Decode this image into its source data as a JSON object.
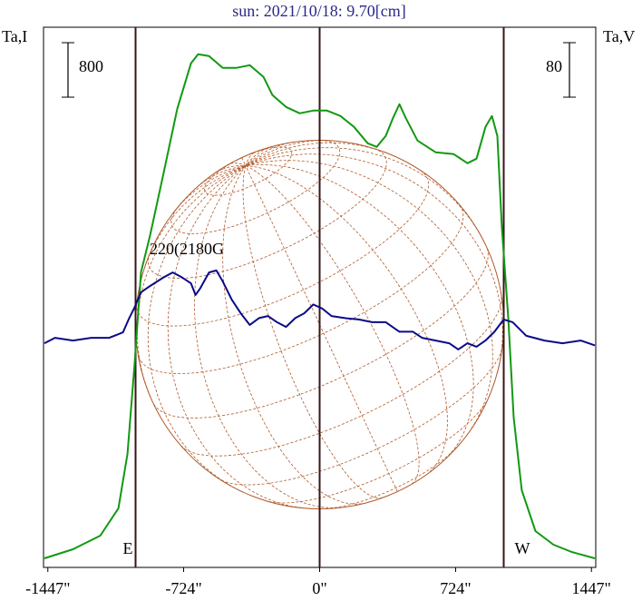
{
  "chart_data": {
    "type": "line",
    "title": "sun: 2021/10/18: 9.70[cm]",
    "y_label": "Ta,I",
    "y2_label": "Ta,V",
    "annotation": "220(2180G",
    "xlim": [
      -1470,
      1470
    ],
    "xticks": [
      {
        "value": -1447,
        "label": "-1447\""
      },
      {
        "value": -724,
        "label": "-724\""
      },
      {
        "value": 0,
        "label": "0\""
      },
      {
        "value": 724,
        "label": "724\""
      },
      {
        "value": 1447,
        "label": "1447\""
      }
    ],
    "ylim": [
      0,
      7930
    ],
    "y2lim": [
      -333,
      460
    ],
    "scale_bars": [
      {
        "value": 800,
        "axis": "y"
      },
      {
        "value": 80,
        "axis": "y2"
      }
    ],
    "markers": [
      {
        "label": "E",
        "x": -980
      },
      {
        "label": "W",
        "x": 980
      }
    ],
    "series": [
      {
        "color": "#119911",
        "axis": "y",
        "x": [
          -1465,
          -1313,
          -1168,
          -1071,
          -1023,
          -985,
          -951,
          -903,
          -830,
          -758,
          -685,
          -647,
          -589,
          -516,
          -444,
          -372,
          -299,
          -251,
          -179,
          -106,
          -34,
          39,
          111,
          183,
          256,
          304,
          352,
          391,
          425,
          458,
          521,
          618,
          714,
          787,
          835,
          883,
          917,
          946,
          970,
          1004,
          1033,
          1076,
          1149,
          1245,
          1342,
          1465
        ],
        "values": [
          133,
          267,
          467,
          867,
          1667,
          3000,
          4333,
          4867,
          5800,
          6733,
          7400,
          7533,
          7507,
          7333,
          7333,
          7373,
          7200,
          6933,
          6760,
          6667,
          6707,
          6707,
          6627,
          6467,
          6227,
          6173,
          6333,
          6600,
          6800,
          6600,
          6267,
          6093,
          6067,
          5933,
          6000,
          6467,
          6627,
          6333,
          5000,
          3667,
          2200,
          1133,
          533,
          333,
          227,
          133
        ]
      },
      {
        "color": "#0a0a88",
        "axis": "y2",
        "x": [
          -1465,
          -1409,
          -1313,
          -1216,
          -1120,
          -1047,
          -1014,
          -985,
          -951,
          -903,
          -830,
          -782,
          -734,
          -685,
          -661,
          -637,
          -589,
          -550,
          -516,
          -468,
          -420,
          -372,
          -323,
          -275,
          -227,
          -179,
          -130,
          -82,
          -34,
          14,
          63,
          135,
          208,
          280,
          352,
          425,
          497,
          545,
          618,
          690,
          738,
          787,
          835,
          883,
          931,
          980,
          1028,
          1100,
          1197,
          1293,
          1390,
          1465
        ],
        "values": [
          -4,
          4,
          0,
          4,
          4,
          12,
          33,
          49,
          71,
          80,
          93,
          100,
          93,
          84,
          67,
          76,
          100,
          103,
          87,
          60,
          40,
          23,
          33,
          36,
          27,
          20,
          33,
          40,
          53,
          47,
          36,
          33,
          31,
          27,
          27,
          13,
          13,
          4,
          0,
          -4,
          -13,
          -4,
          -9,
          0,
          13,
          31,
          27,
          7,
          0,
          -4,
          0,
          -7
        ]
      }
    ]
  }
}
